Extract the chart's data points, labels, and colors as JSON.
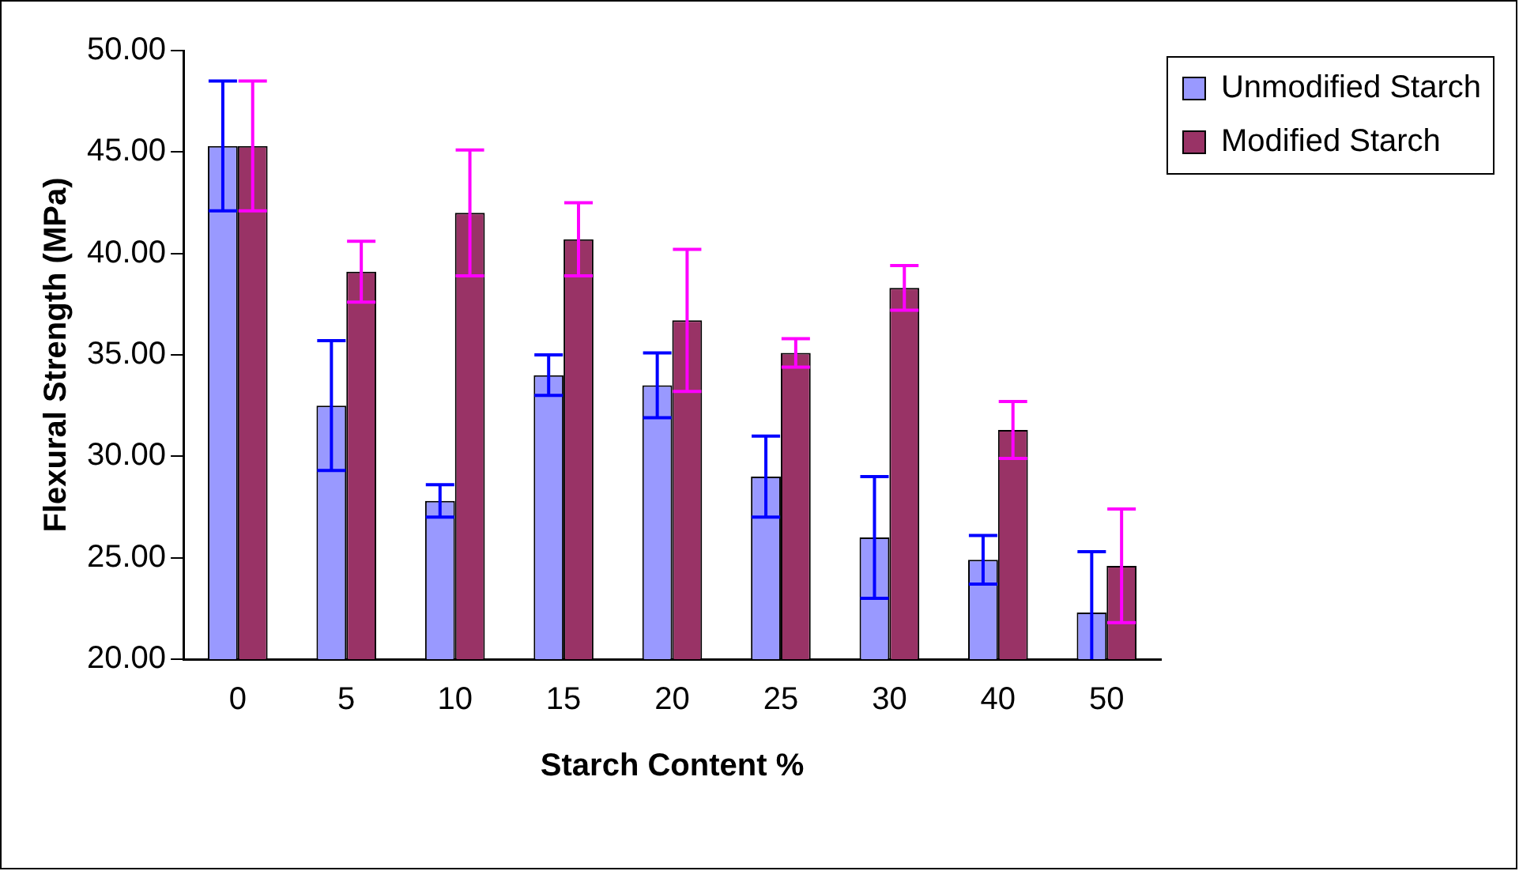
{
  "chart_data": {
    "type": "bar",
    "xlabel": "Starch Content %",
    "ylabel": "Flexural Strength (MPa)",
    "categories": [
      "0",
      "5",
      "10",
      "15",
      "20",
      "25",
      "30",
      "40",
      "50"
    ],
    "series": [
      {
        "name": "Unmodified Starch",
        "color": "#9999ff",
        "values": [
          45.3,
          32.5,
          27.8,
          34.0,
          33.5,
          29.0,
          26.0,
          24.9,
          22.3
        ],
        "errors": [
          3.2,
          3.2,
          0.8,
          1.0,
          1.6,
          2.0,
          3.0,
          1.2,
          [
            20,
            25.3
          ]
        ]
      },
      {
        "name": "Modified Starch",
        "color": "#993366",
        "values": [
          45.3,
          39.1,
          42.0,
          40.7,
          36.7,
          35.1,
          38.3,
          31.3,
          24.6
        ],
        "errors": [
          3.2,
          1.5,
          3.1,
          1.8,
          3.5,
          0.7,
          1.1,
          1.4,
          2.8
        ]
      }
    ],
    "ylim": [
      20,
      50
    ],
    "yticks": [
      {
        "value": 20,
        "label": "20.00"
      },
      {
        "value": 25,
        "label": "25.00"
      },
      {
        "value": 30,
        "label": "30.00"
      },
      {
        "value": 35,
        "label": "35.00"
      },
      {
        "value": 40,
        "label": "40.00"
      },
      {
        "value": 45,
        "label": "45.00"
      },
      {
        "value": 50,
        "label": "50.00"
      }
    ],
    "grid": false,
    "legend": "top right"
  }
}
